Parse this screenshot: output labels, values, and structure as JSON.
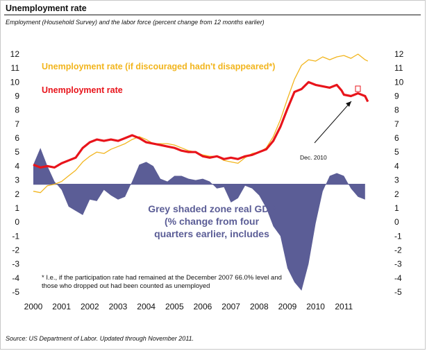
{
  "header": {
    "title": "Unemployment rate",
    "subtitle": "Employment (Household Survey) and the labor force (percent change from 12 months earlier)"
  },
  "footer": {
    "source": "Source: US Department of Labor. Updated through November 2011."
  },
  "colors": {
    "unemployment": "#e8141b",
    "discouraged": "#f2b51d",
    "gdp": "#5b5d96",
    "annotation_gdp": "#5b5d96"
  },
  "chart_data": {
    "type": "line",
    "x_ticks": [
      "2000",
      "2001",
      "2002",
      "2003",
      "2004",
      "2005",
      "2006",
      "2007",
      "2008",
      "2009",
      "2010",
      "2011"
    ],
    "y_ticks": [
      "12",
      "11",
      "10",
      "9",
      "8",
      "7",
      "6",
      "5",
      "4",
      "3",
      "2",
      "1",
      "0",
      "-1",
      "-2",
      "-3",
      "-4",
      "-5"
    ],
    "ylim": [
      -5,
      12
    ],
    "xlim": [
      2000,
      2012.1
    ],
    "legend": {
      "discouraged": "Unemployment rate (if discouraged hadn't disappeared*)",
      "unemployment": "Unemployment rate"
    },
    "annotations": {
      "gdp_label": [
        "Grey shaded zone real GDP",
        "(% change from four",
        "quarters earlier, includes"
      ],
      "footnote": [
        "* I.e., if the participation rate had remained at the December 2007 66.0% level and",
        "those who dropped out had been counted as unemployed"
      ],
      "callout": "Dec. 2010"
    },
    "series": [
      {
        "name": "Unemployment rate",
        "x": [
          2000,
          2000.25,
          2000.5,
          2000.75,
          2001,
          2001.25,
          2001.5,
          2001.75,
          2002,
          2002.25,
          2002.5,
          2002.75,
          2003,
          2003.25,
          2003.5,
          2003.75,
          2004,
          2004.25,
          2004.5,
          2004.75,
          2005,
          2005.25,
          2005.5,
          2005.75,
          2006,
          2006.25,
          2006.5,
          2006.75,
          2007,
          2007.25,
          2007.5,
          2007.75,
          2008,
          2008.25,
          2008.5,
          2008.75,
          2009,
          2009.25,
          2009.5,
          2009.75,
          2010,
          2010.25,
          2010.5,
          2010.75,
          2010.92,
          2011,
          2011.25,
          2011.5,
          2011.75,
          2011.85
        ],
        "values": [
          4.1,
          3.9,
          4.0,
          3.9,
          4.2,
          4.4,
          4.6,
          5.3,
          5.7,
          5.9,
          5.8,
          5.9,
          5.8,
          6.0,
          6.2,
          6.0,
          5.7,
          5.6,
          5.5,
          5.4,
          5.3,
          5.1,
          5.0,
          5.0,
          4.7,
          4.6,
          4.7,
          4.5,
          4.6,
          4.5,
          4.7,
          4.8,
          5.0,
          5.2,
          5.8,
          6.8,
          8.1,
          9.3,
          9.5,
          10.0,
          9.8,
          9.7,
          9.6,
          9.8,
          9.4,
          9.1,
          9.0,
          9.2,
          9.0,
          8.6
        ]
      },
      {
        "name": "Unemployment rate (if discouraged hadn't disappeared*)",
        "x": [
          2000,
          2000.25,
          2000.5,
          2000.75,
          2001,
          2001.25,
          2001.5,
          2001.75,
          2002,
          2002.25,
          2002.5,
          2002.75,
          2003,
          2003.25,
          2003.5,
          2003.75,
          2004,
          2004.25,
          2004.5,
          2004.75,
          2005,
          2005.25,
          2005.5,
          2005.75,
          2006,
          2006.25,
          2006.5,
          2006.75,
          2007,
          2007.25,
          2007.5,
          2007.75,
          2008,
          2008.25,
          2008.5,
          2008.75,
          2009,
          2009.25,
          2009.5,
          2009.75,
          2010,
          2010.25,
          2010.5,
          2010.75,
          2011,
          2011.25,
          2011.5,
          2011.75,
          2011.85
        ],
        "values": [
          2.2,
          2.1,
          2.6,
          2.7,
          2.9,
          3.3,
          3.7,
          4.3,
          4.7,
          5.0,
          4.9,
          5.2,
          5.4,
          5.6,
          5.9,
          6.1,
          5.9,
          5.6,
          5.6,
          5.6,
          5.5,
          5.3,
          5.1,
          5.0,
          4.8,
          4.7,
          4.7,
          4.4,
          4.3,
          4.2,
          4.6,
          4.9,
          5.0,
          5.3,
          6.1,
          7.3,
          8.8,
          10.2,
          11.2,
          11.6,
          11.5,
          11.8,
          11.6,
          11.8,
          11.9,
          11.7,
          12.0,
          11.6,
          11.5
        ]
      },
      {
        "name": "Grey shaded zone real GDP",
        "x": [
          2000,
          2000.25,
          2000.5,
          2000.75,
          2001,
          2001.25,
          2001.5,
          2001.75,
          2002,
          2002.25,
          2002.5,
          2002.75,
          2003,
          2003.25,
          2003.5,
          2003.75,
          2004,
          2004.25,
          2004.5,
          2004.75,
          2005,
          2005.25,
          2005.5,
          2005.75,
          2006,
          2006.25,
          2006.5,
          2006.75,
          2007,
          2007.25,
          2007.5,
          2007.75,
          2008,
          2008.25,
          2008.5,
          2008.75,
          2009,
          2009.25,
          2009.5,
          2009.75,
          2010,
          2010.25,
          2010.5,
          2010.75,
          2011,
          2011.25,
          2011.5,
          2011.75
        ],
        "values": [
          4.1,
          5.3,
          4.0,
          2.9,
          2.3,
          1.1,
          0.8,
          0.5,
          1.6,
          1.5,
          2.3,
          1.9,
          1.6,
          1.8,
          2.9,
          4.1,
          4.3,
          4.0,
          3.1,
          2.9,
          3.3,
          3.3,
          3.1,
          3.0,
          3.1,
          2.9,
          2.4,
          2.5,
          1.4,
          1.7,
          2.6,
          2.4,
          1.9,
          1.0,
          -0.3,
          -1.0,
          -3.3,
          -4.3,
          -4.9,
          -3.0,
          -0.1,
          2.2,
          3.3,
          3.5,
          3.3,
          2.4,
          1.8,
          1.6
        ]
      }
    ],
    "gdp_baseline": 2.7
  }
}
